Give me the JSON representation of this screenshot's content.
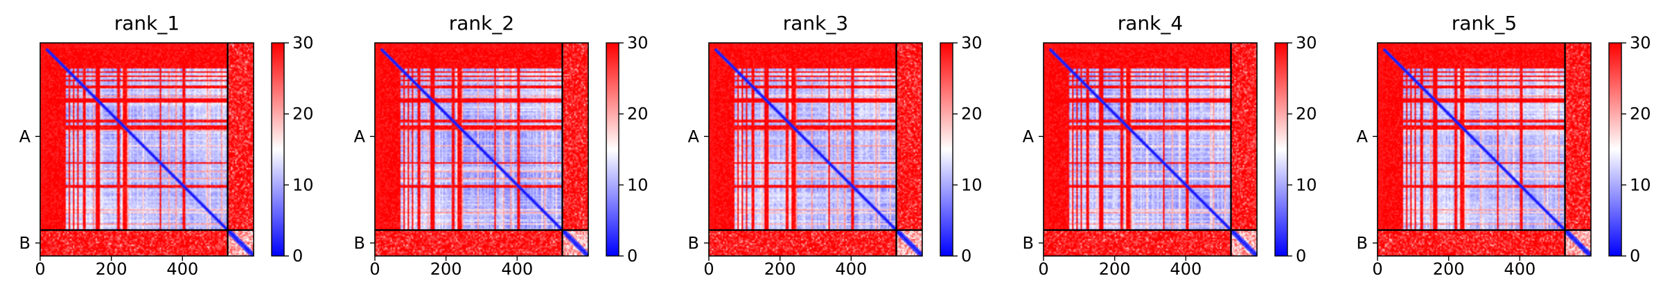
{
  "chart_data": [
    {
      "type": "heatmap",
      "title": "rank_1",
      "xlabel": "",
      "ylabel": "",
      "xlim": [
        0,
        600
      ],
      "x_ticks": [
        0,
        200,
        400
      ],
      "y_ticks": [
        "A",
        "B"
      ],
      "chains": [
        {
          "name": "A",
          "length": 527
        },
        {
          "name": "B",
          "length": 73
        }
      ],
      "colorbar": {
        "min": 0,
        "max": 30,
        "ticks": [
          0,
          10,
          20,
          30
        ],
        "colormap": "bwr"
      },
      "colormap_colors": {
        "low": "#0000ff",
        "mid": "#ffffff",
        "high": "#ff0000"
      }
    },
    {
      "type": "heatmap",
      "title": "rank_2",
      "xlabel": "",
      "ylabel": "",
      "xlim": [
        0,
        600
      ],
      "x_ticks": [
        0,
        200,
        400
      ],
      "y_ticks": [
        "A",
        "B"
      ],
      "chains": [
        {
          "name": "A",
          "length": 527
        },
        {
          "name": "B",
          "length": 73
        }
      ],
      "colorbar": {
        "min": 0,
        "max": 30,
        "ticks": [
          0,
          10,
          20,
          30
        ],
        "colormap": "bwr"
      },
      "colormap_colors": {
        "low": "#0000ff",
        "mid": "#ffffff",
        "high": "#ff0000"
      }
    },
    {
      "type": "heatmap",
      "title": "rank_3",
      "xlabel": "",
      "ylabel": "",
      "xlim": [
        0,
        600
      ],
      "x_ticks": [
        0,
        200,
        400
      ],
      "y_ticks": [
        "A",
        "B"
      ],
      "chains": [
        {
          "name": "A",
          "length": 527
        },
        {
          "name": "B",
          "length": 73
        }
      ],
      "colorbar": {
        "min": 0,
        "max": 30,
        "ticks": [
          0,
          10,
          20,
          30
        ],
        "colormap": "bwr"
      },
      "colormap_colors": {
        "low": "#0000ff",
        "mid": "#ffffff",
        "high": "#ff0000"
      }
    },
    {
      "type": "heatmap",
      "title": "rank_4",
      "xlabel": "",
      "ylabel": "",
      "xlim": [
        0,
        600
      ],
      "x_ticks": [
        0,
        200,
        400
      ],
      "y_ticks": [
        "A",
        "B"
      ],
      "chains": [
        {
          "name": "A",
          "length": 527
        },
        {
          "name": "B",
          "length": 73
        }
      ],
      "colorbar": {
        "min": 0,
        "max": 30,
        "ticks": [
          0,
          10,
          20,
          30
        ],
        "colormap": "bwr"
      },
      "colormap_colors": {
        "low": "#0000ff",
        "mid": "#ffffff",
        "high": "#ff0000"
      }
    },
    {
      "type": "heatmap",
      "title": "rank_5",
      "xlabel": "",
      "ylabel": "",
      "xlim": [
        0,
        600
      ],
      "x_ticks": [
        0,
        200,
        400
      ],
      "y_ticks": [
        "A",
        "B"
      ],
      "chains": [
        {
          "name": "A",
          "length": 527
        },
        {
          "name": "B",
          "length": 73
        }
      ],
      "colorbar": {
        "min": 0,
        "max": 30,
        "ticks": [
          0,
          10,
          20,
          30
        ],
        "colormap": "bwr"
      },
      "colormap_colors": {
        "low": "#0000ff",
        "mid": "#ffffff",
        "high": "#ff0000"
      }
    }
  ]
}
